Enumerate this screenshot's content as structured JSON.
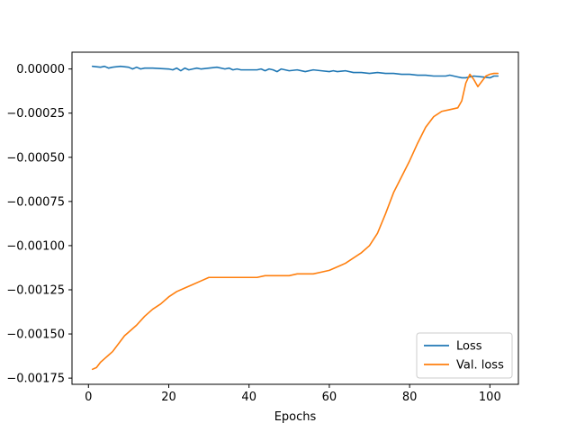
{
  "chart_data": {
    "type": "line",
    "title": "",
    "xlabel": "Epochs",
    "ylabel": "",
    "xlim": [
      -4.1,
      107.1
    ],
    "ylim": [
      -0.001785,
      9.5e-05
    ],
    "xticks": [
      0,
      20,
      40,
      60,
      80,
      100
    ],
    "xtick_labels": [
      "0",
      "20",
      "40",
      "60",
      "80",
      "100"
    ],
    "yticks": [
      0.0,
      -0.00025,
      -0.0005,
      -0.00075,
      -0.001,
      -0.00125,
      -0.0015,
      -0.00175
    ],
    "ytick_labels": [
      "0.00000",
      "−0.00025",
      "−0.00050",
      "−0.00075",
      "−0.00100",
      "−0.00125",
      "−0.00150",
      "−0.00175"
    ],
    "grid": false,
    "legend_position": "lower-right",
    "series": [
      {
        "name": "Loss",
        "color": "#1f77b4",
        "x": [
          1,
          3,
          4,
          5,
          6,
          8,
          10,
          11,
          12,
          13,
          14,
          16,
          20,
          21,
          22,
          23,
          24,
          25,
          26,
          27,
          28,
          30,
          32,
          34,
          35,
          36,
          37,
          38,
          40,
          42,
          43,
          44,
          45,
          46,
          47,
          48,
          49,
          50,
          52,
          54,
          56,
          58,
          60,
          61,
          62,
          64,
          66,
          68,
          70,
          72,
          74,
          76,
          78,
          80,
          82,
          84,
          86,
          88,
          89,
          90,
          91,
          92,
          93,
          94,
          96,
          98,
          100,
          101,
          102
        ],
        "y": [
          1.5e-05,
          1e-05,
          1.5e-05,
          5e-06,
          1e-05,
          1.5e-05,
          1e-05,
          0.0,
          1e-05,
          0.0,
          5e-06,
          5e-06,
          0.0,
          -5e-06,
          5e-06,
          -1e-05,
          5e-06,
          -5e-06,
          0.0,
          5e-06,
          0.0,
          5e-06,
          1e-05,
          0.0,
          5e-06,
          -5e-06,
          0.0,
          -5e-06,
          -5e-06,
          -5e-06,
          0.0,
          -1e-05,
          0.0,
          -5e-06,
          -1.5e-05,
          0.0,
          -5e-06,
          -1e-05,
          -5e-06,
          -1.5e-05,
          -5e-06,
          -1e-05,
          -1.5e-05,
          -1e-05,
          -1.5e-05,
          -1e-05,
          -2e-05,
          -2e-05,
          -2.5e-05,
          -2e-05,
          -2.5e-05,
          -2.5e-05,
          -3e-05,
          -3e-05,
          -3.5e-05,
          -3.5e-05,
          -4e-05,
          -4e-05,
          -4e-05,
          -3.5e-05,
          -4e-05,
          -4.5e-05,
          -5e-05,
          -5e-05,
          -4e-05,
          -4.5e-05,
          -5e-05,
          -4e-05,
          -4e-05
        ]
      },
      {
        "name": "Val. loss",
        "color": "#ff7f0e",
        "x": [
          1,
          2,
          3,
          4,
          5,
          6,
          7,
          8,
          9,
          10,
          12,
          14,
          16,
          18,
          20,
          22,
          24,
          26,
          28,
          30,
          32,
          34,
          36,
          38,
          40,
          42,
          44,
          46,
          48,
          50,
          52,
          54,
          56,
          58,
          60,
          62,
          64,
          66,
          68,
          70,
          72,
          74,
          76,
          78,
          80,
          82,
          84,
          86,
          88,
          90,
          92,
          93,
          94,
          95,
          96,
          97,
          98,
          99,
          100,
          101,
          102
        ],
        "y": [
          -0.0017,
          -0.00169,
          -0.00166,
          -0.00164,
          -0.00162,
          -0.0016,
          -0.00157,
          -0.00154,
          -0.00151,
          -0.00149,
          -0.00145,
          -0.0014,
          -0.00136,
          -0.00133,
          -0.00129,
          -0.00126,
          -0.00124,
          -0.00122,
          -0.0012,
          -0.00118,
          -0.00118,
          -0.00118,
          -0.00118,
          -0.00118,
          -0.00118,
          -0.00118,
          -0.00117,
          -0.00117,
          -0.00117,
          -0.00117,
          -0.00116,
          -0.00116,
          -0.00116,
          -0.00115,
          -0.00114,
          -0.00112,
          -0.0011,
          -0.00107,
          -0.00104,
          -0.001,
          -0.00093,
          -0.00082,
          -0.0007,
          -0.00061,
          -0.00052,
          -0.00042,
          -0.00033,
          -0.00027,
          -0.00024,
          -0.00023,
          -0.00022,
          -0.00018,
          -8e-05,
          -3e-05,
          -6e-05,
          -0.0001,
          -7e-05,
          -4e-05,
          -3e-05,
          -2.5e-05,
          -2.5e-05
        ]
      }
    ]
  }
}
